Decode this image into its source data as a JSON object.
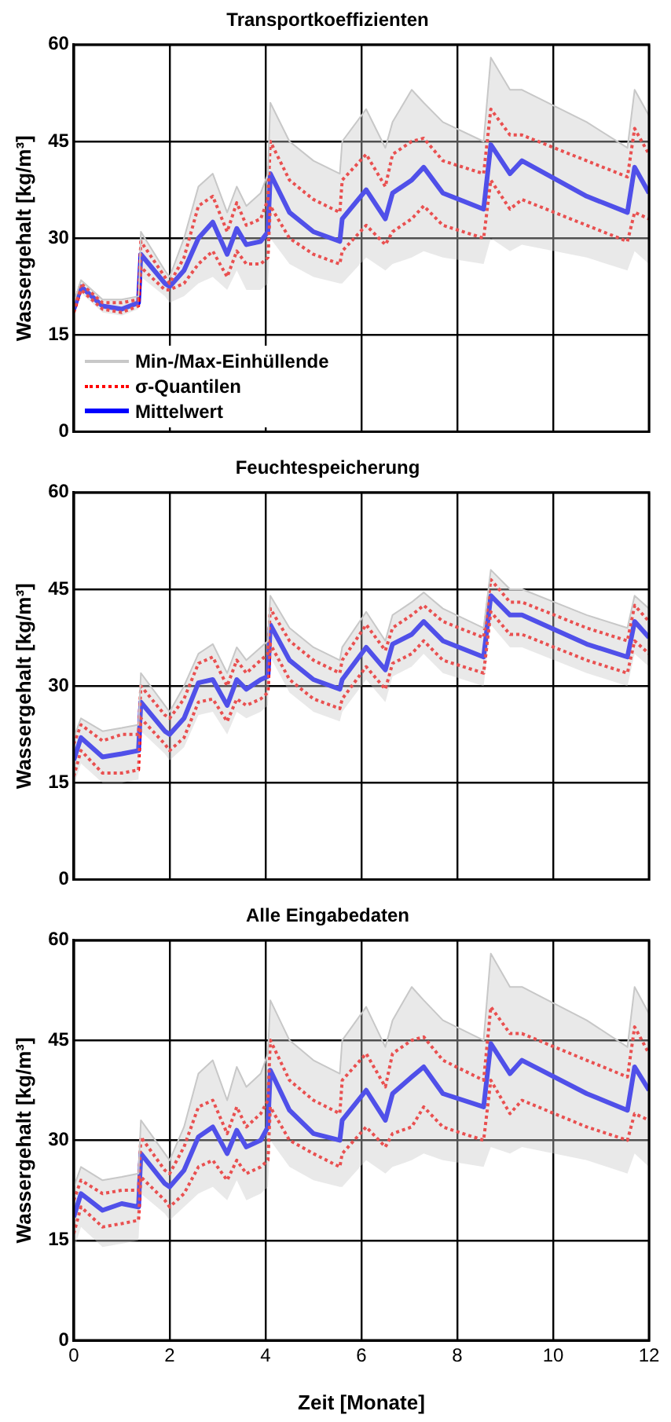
{
  "chart_data": [
    {
      "type": "line",
      "title": "Transportkoeffizienten",
      "ylabel": "Wassergehalt [kg/m³]",
      "xlim": [
        0,
        12
      ],
      "xticks": [
        0,
        2,
        4,
        6,
        8,
        10,
        12
      ],
      "ylim": [
        0,
        60
      ],
      "yticks": [
        0,
        15,
        30,
        45,
        60
      ],
      "grid": true,
      "tick_labels": "y",
      "legend": "bottom left",
      "x": [
        0,
        0.15,
        0.6,
        1.0,
        1.35,
        1.4,
        1.9,
        2.0,
        2.3,
        2.6,
        2.9,
        3.2,
        3.4,
        3.6,
        3.9,
        4.05,
        4.1,
        4.5,
        5.0,
        5.55,
        5.6,
        6.1,
        6.5,
        6.65,
        7.05,
        7.3,
        7.7,
        8.55,
        8.7,
        9.1,
        9.35,
        10.7,
        11.55,
        11.7,
        12
      ],
      "series": [
        {
          "name": "Min-/Max-Einhüllende",
          "color": "#c8c8c8",
          "values": [
            20,
            23.5,
            20.5,
            20.5,
            21,
            31,
            25,
            24,
            30,
            38,
            40,
            34,
            38,
            35,
            37,
            40,
            51,
            45,
            42,
            40,
            45,
            50,
            44,
            48,
            53,
            51,
            48,
            45,
            58,
            53,
            53,
            48,
            44,
            53,
            49
          ],
          "lower": [
            18,
            21.5,
            18.5,
            18,
            19,
            24,
            21,
            20,
            21,
            23,
            24,
            22,
            25,
            22,
            22,
            23,
            30,
            26,
            24,
            23,
            23,
            27,
            25,
            26,
            27,
            28,
            27,
            26,
            30,
            28,
            29,
            27,
            25,
            28,
            26
          ],
          "upper": [
            20,
            23.5,
            20.5,
            20.5,
            21,
            31,
            25,
            24,
            30,
            38,
            40,
            34,
            38,
            35,
            37,
            40,
            51,
            45,
            42,
            40,
            45,
            50,
            44,
            48,
            53,
            51,
            48,
            45,
            58,
            53,
            53,
            48,
            44,
            53,
            49
          ]
        },
        {
          "name": "σ-Quantilen",
          "color": "#ff0000",
          "line_style": "dotted",
          "values": [
            19.5,
            23,
            20,
            20,
            20.5,
            29.5,
            24,
            23,
            27,
            35,
            36.5,
            31,
            35.5,
            32,
            33,
            36,
            45,
            39,
            36,
            34,
            39,
            43,
            38,
            43,
            45,
            45.5,
            42,
            40,
            50,
            46,
            46,
            42,
            39.5,
            47,
            43
          ]
        },
        {
          "color": "#ff0000",
          "line_style": "dotted",
          "values": [
            18.5,
            22,
            19,
            18.5,
            19.5,
            25.5,
            22,
            22,
            23,
            26,
            28,
            24,
            28,
            26,
            26,
            27,
            35,
            30,
            27.5,
            26,
            28,
            32,
            29,
            31,
            33,
            35,
            32,
            30,
            39,
            34.5,
            36,
            32,
            29.5,
            34,
            33
          ]
        },
        {
          "name": "Mittelwert",
          "color": "#0000ff",
          "line_style": "solid",
          "values": [
            19,
            22.5,
            19.5,
            19,
            20,
            27.5,
            23,
            22.5,
            25,
            30,
            32.5,
            27.5,
            31.5,
            29,
            29.5,
            31,
            40,
            34,
            31,
            29.5,
            33,
            37.5,
            33,
            37,
            39,
            41,
            37,
            34.5,
            44.5,
            40,
            42,
            36.5,
            34,
            41,
            37
          ]
        }
      ]
    },
    {
      "type": "line",
      "title": "Feuchtespeicherung",
      "ylabel": "Wassergehalt [kg/m³]",
      "xlim": [
        0,
        12
      ],
      "xticks": [
        0,
        2,
        4,
        6,
        8,
        10,
        12
      ],
      "ylim": [
        0,
        60
      ],
      "yticks": [
        0,
        15,
        30,
        45,
        60
      ],
      "grid": true,
      "tick_labels": "y",
      "x": [
        0,
        0.15,
        0.6,
        1.0,
        1.35,
        1.4,
        1.9,
        2.0,
        2.3,
        2.6,
        2.9,
        3.2,
        3.4,
        3.6,
        3.9,
        4.05,
        4.1,
        4.5,
        5.0,
        5.55,
        5.6,
        6.1,
        6.5,
        6.65,
        7.05,
        7.3,
        7.7,
        8.55,
        8.7,
        9.1,
        9.35,
        10.7,
        11.55,
        11.7,
        12
      ],
      "series": [
        {
          "color": "#c8c8c8",
          "values": [
            22,
            25,
            23,
            23.5,
            24,
            32,
            27,
            26,
            30,
            35,
            36.5,
            32,
            36,
            34,
            36,
            37,
            44,
            39,
            36,
            34,
            36,
            41.5,
            37,
            41,
            43,
            44.5,
            42,
            39,
            48,
            45,
            45,
            41,
            39,
            44,
            42
          ],
          "lower": [
            14.5,
            18,
            15,
            15,
            15.5,
            23,
            19.5,
            18.5,
            20.5,
            25.5,
            26,
            22.5,
            26,
            25,
            26,
            27,
            34.5,
            29,
            26,
            24.5,
            26,
            31,
            27.5,
            31.5,
            33,
            35,
            32,
            30,
            39.5,
            36,
            36,
            32,
            30,
            35,
            33
          ],
          "upper": [
            22,
            25,
            23,
            23.5,
            24,
            32,
            27,
            26,
            30,
            35,
            36.5,
            32,
            36,
            34,
            36,
            37,
            44,
            39,
            36,
            34,
            36,
            41.5,
            37,
            41,
            43,
            44.5,
            42,
            39,
            48,
            45,
            45,
            41,
            39,
            44,
            42
          ]
        },
        {
          "color": "#ff0000",
          "line_style": "dotted",
          "values": [
            21,
            24,
            21.5,
            22.5,
            22.5,
            30,
            25.5,
            25,
            28,
            33.5,
            34.5,
            30,
            34,
            32,
            34,
            35,
            42,
            37,
            34,
            32,
            34,
            39.5,
            35.5,
            39,
            41,
            42.5,
            40,
            37.5,
            46.5,
            43,
            43,
            39,
            37,
            42.5,
            40
          ]
        },
        {
          "color": "#ff0000",
          "line_style": "dotted",
          "values": [
            16,
            20,
            16.5,
            16.5,
            17,
            25,
            21,
            20,
            22,
            27.5,
            28,
            24.5,
            28,
            27,
            28,
            29,
            36.5,
            31,
            28,
            26.5,
            28,
            33,
            29.5,
            33.5,
            35,
            37,
            34,
            32,
            41.5,
            38,
            38,
            34,
            32,
            37,
            35
          ]
        },
        {
          "color": "#0000ff",
          "line_style": "solid",
          "values": [
            18.5,
            22,
            19,
            19.5,
            20,
            27.5,
            23,
            22.5,
            25,
            30.5,
            31,
            27,
            31,
            29.5,
            31,
            31.5,
            39.5,
            34,
            31,
            29.5,
            31,
            36,
            32.5,
            36.5,
            38,
            40,
            37,
            34.5,
            44,
            41,
            41,
            36.5,
            34.5,
            40,
            37.5
          ]
        }
      ]
    },
    {
      "type": "line",
      "title": "Alle Eingabedaten",
      "ylabel": "Wassergehalt [kg/m³]",
      "xlabel": "Zeit [Monate]",
      "xlim": [
        0,
        12
      ],
      "xticks": [
        0,
        2,
        4,
        6,
        8,
        10,
        12
      ],
      "ylim": [
        0,
        60
      ],
      "yticks": [
        0,
        15,
        30,
        45,
        60
      ],
      "grid": true,
      "x": [
        0,
        0.15,
        0.6,
        1.0,
        1.35,
        1.4,
        1.9,
        2.0,
        2.3,
        2.6,
        2.9,
        3.2,
        3.4,
        3.6,
        3.9,
        4.05,
        4.1,
        4.5,
        5.0,
        5.55,
        5.6,
        6.1,
        6.5,
        6.65,
        7.05,
        7.3,
        7.7,
        8.55,
        8.7,
        9.1,
        9.35,
        10.7,
        11.55,
        11.7,
        12
      ],
      "series": [
        {
          "color": "#c8c8c8",
          "values": [
            23,
            26,
            24,
            24.5,
            25,
            33,
            28,
            27,
            32,
            40,
            42,
            36,
            41,
            38,
            40,
            43,
            51,
            45,
            42,
            40,
            45,
            50,
            44,
            48,
            53,
            51,
            48,
            45,
            58,
            53,
            53,
            48,
            44,
            53,
            49
          ],
          "lower": [
            13.5,
            17,
            14,
            14.5,
            15,
            22,
            19,
            18,
            20,
            22,
            23,
            21,
            24,
            21,
            22,
            23,
            30,
            26,
            24,
            23,
            23,
            27,
            25,
            26,
            27,
            28,
            27,
            26,
            29,
            28,
            29,
            27,
            25,
            28,
            26
          ],
          "upper": [
            23,
            26,
            24,
            24.5,
            25,
            33,
            28,
            27,
            32,
            40,
            42,
            36,
            41,
            38,
            40,
            43,
            51,
            45,
            42,
            40,
            45,
            50,
            44,
            48,
            53,
            51,
            48,
            45,
            58,
            53,
            53,
            48,
            44,
            53,
            49
          ]
        },
        {
          "color": "#ff0000",
          "line_style": "dotted",
          "values": [
            21,
            24,
            22,
            22.5,
            22.5,
            30.5,
            25.5,
            25,
            29,
            35,
            36,
            31,
            35,
            32,
            34,
            36,
            45,
            39,
            36,
            34,
            39,
            43,
            38,
            43,
            45,
            45.5,
            42,
            39,
            50,
            46,
            46,
            42,
            39.5,
            47,
            43
          ]
        },
        {
          "color": "#ff0000",
          "line_style": "dotted",
          "values": [
            16,
            20,
            17,
            17.5,
            18,
            24.5,
            21,
            20,
            22,
            26,
            27,
            24,
            27,
            25,
            26,
            27,
            35,
            30,
            28,
            26,
            28,
            32,
            29,
            31,
            32,
            35,
            32,
            30,
            39,
            34,
            36,
            32,
            30,
            34,
            33
          ]
        },
        {
          "color": "#0000ff",
          "line_style": "solid",
          "values": [
            18.5,
            22,
            19.5,
            20.5,
            20,
            28,
            23.5,
            23,
            25.5,
            30.5,
            32,
            28,
            31.5,
            29,
            30,
            32,
            40.5,
            34.5,
            31,
            30,
            33,
            37.5,
            33,
            37,
            39.5,
            41,
            37,
            35,
            44.5,
            40,
            42,
            37,
            34.5,
            41,
            37.5
          ]
        }
      ]
    }
  ]
}
